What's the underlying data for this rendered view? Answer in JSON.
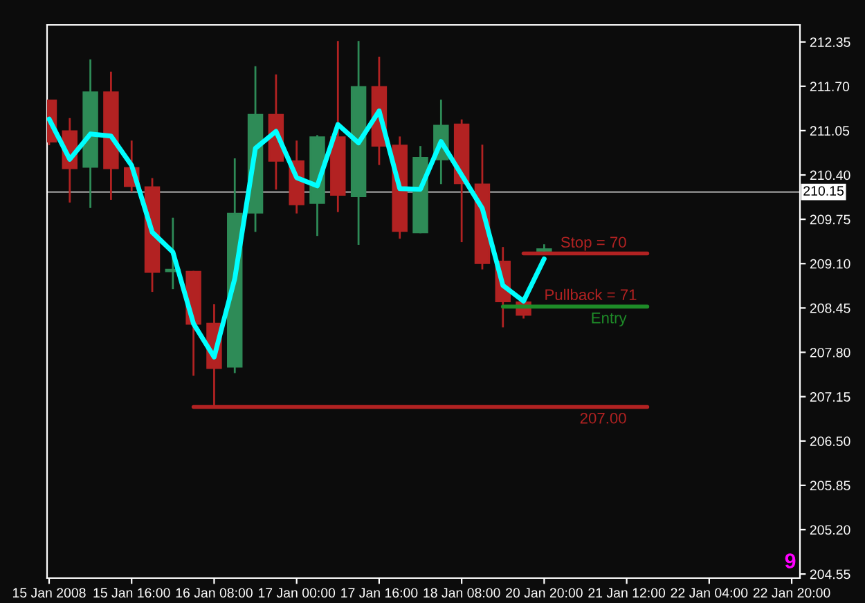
{
  "chart_data": {
    "type": "candlestick",
    "categories": [
      "15 Jan 2008",
      null,
      null,
      null,
      "15 Jan 16:00",
      null,
      null,
      null,
      "16 Jan 08:00",
      null,
      null,
      null,
      "17 Jan 00:00",
      null,
      null,
      null,
      "17 Jan 16:00",
      null,
      null,
      null,
      "18 Jan 08:00",
      null,
      null,
      null,
      "20 Jan 20:00",
      null,
      null,
      null,
      "21 Jan 12:00",
      null,
      null,
      null,
      "22 Jan 04:00",
      null,
      null,
      null,
      "22 Jan 20:00"
    ],
    "ylim": [
      204.49,
      212.6
    ],
    "yticks": [
      {
        "value": 212.35,
        "label": "212.35"
      },
      {
        "value": 211.7,
        "label": "211.70"
      },
      {
        "value": 211.05,
        "label": "211.05"
      },
      {
        "value": 210.4,
        "label": "210.40"
      },
      {
        "value": 209.75,
        "label": "209.75"
      },
      {
        "value": 209.1,
        "label": "209.10"
      },
      {
        "value": 208.45,
        "label": "208.45"
      },
      {
        "value": 207.8,
        "label": "207.80"
      },
      {
        "value": 207.15,
        "label": "207.15"
      },
      {
        "value": 206.5,
        "label": "206.50"
      },
      {
        "value": 205.85,
        "label": "205.85"
      },
      {
        "value": 205.2,
        "label": "205.20"
      },
      {
        "value": 204.55,
        "label": "204.55"
      }
    ],
    "ohlc": [
      [
        211.49,
        211.49,
        210.85,
        210.89
      ],
      [
        211.04,
        211.22,
        210.01,
        210.5
      ],
      [
        210.52,
        212.08,
        209.93,
        211.61
      ],
      [
        211.61,
        211.9,
        210.05,
        210.5
      ],
      [
        210.5,
        210.89,
        210.17,
        210.24
      ],
      [
        210.22,
        210.34,
        208.7,
        208.98
      ],
      [
        208.99,
        209.76,
        208.74,
        209.0
      ],
      [
        208.98,
        208.98,
        207.47,
        208.22
      ],
      [
        208.22,
        208.49,
        207.0,
        207.57
      ],
      [
        207.59,
        210.63,
        207.51,
        209.83
      ],
      [
        209.85,
        211.98,
        209.58,
        211.28
      ],
      [
        211.28,
        211.86,
        210.2,
        210.61
      ],
      [
        210.6,
        210.89,
        209.85,
        209.97
      ],
      [
        209.99,
        210.97,
        209.52,
        210.95
      ],
      [
        210.95,
        212.35,
        209.87,
        210.11
      ],
      [
        210.09,
        212.35,
        209.39,
        211.69
      ],
      [
        211.69,
        212.12,
        210.56,
        210.83
      ],
      [
        210.83,
        210.95,
        209.48,
        209.58
      ],
      [
        209.56,
        210.81,
        209.56,
        210.65
      ],
      [
        210.63,
        211.49,
        210.28,
        211.12
      ],
      [
        211.14,
        211.2,
        209.43,
        210.28
      ],
      [
        210.26,
        210.83,
        209.03,
        209.11
      ],
      [
        209.13,
        209.33,
        208.18,
        208.55
      ],
      [
        208.53,
        208.53,
        208.31,
        208.35
      ],
      [
        209.29,
        209.37,
        209.25,
        209.31
      ],
      null,
      null,
      null,
      null,
      null,
      null,
      null,
      null,
      null,
      null,
      null,
      null
    ],
    "colors": [
      "#b22222",
      "#b22222",
      "#2e8b57",
      "#b22222",
      "#b22222",
      "#b22222",
      "#2e8b57",
      "#b22222",
      "#b22222",
      "#2e8b57",
      "#2e8b57",
      "#b22222",
      "#b22222",
      "#2e8b57",
      "#b22222",
      "#2e8b57",
      "#b22222",
      "#b22222",
      "#2e8b57",
      "#2e8b57",
      "#b22222",
      "#b22222",
      "#b22222",
      "#b22222",
      "#2e8b57",
      null,
      null,
      null,
      null,
      null,
      null,
      null,
      null,
      null,
      null,
      null,
      null
    ],
    "series": [
      {
        "type": "line",
        "color": "#00ffff",
        "values": [
          211.22,
          210.63,
          211.0,
          210.97,
          210.54,
          209.56,
          209.27,
          208.22,
          207.73,
          208.88,
          210.79,
          211.04,
          210.36,
          210.24,
          211.14,
          210.87,
          211.34,
          210.2,
          210.19,
          210.89,
          210.4,
          209.91,
          208.78,
          208.55,
          209.17,
          null,
          null,
          null,
          null,
          null,
          null,
          null,
          null,
          null,
          null,
          null,
          null
        ]
      },
      {
        "type": "line",
        "name": "Stop = 70",
        "color": "#b22222",
        "values": [
          null,
          null,
          null,
          null,
          null,
          null,
          null,
          null,
          null,
          null,
          null,
          null,
          null,
          null,
          null,
          null,
          null,
          null,
          null,
          null,
          null,
          null,
          null,
          209.25,
          209.25,
          209.25,
          209.25,
          209.25,
          209.25,
          209.25,
          null,
          null,
          null,
          null,
          null,
          null,
          null
        ]
      },
      {
        "type": "line",
        "name": "Entry",
        "color": "#1e8c28",
        "values": [
          null,
          null,
          null,
          null,
          null,
          null,
          null,
          null,
          null,
          null,
          null,
          null,
          null,
          null,
          null,
          null,
          null,
          null,
          null,
          null,
          null,
          null,
          208.47,
          208.47,
          208.47,
          208.47,
          208.47,
          208.47,
          208.47,
          208.47,
          null,
          null,
          null,
          null,
          null,
          null,
          null
        ]
      },
      {
        "type": "line",
        "name": "207.00",
        "color": "#b22222",
        "values": [
          null,
          null,
          null,
          null,
          null,
          null,
          null,
          207.0,
          207.0,
          207.0,
          207.0,
          207.0,
          207.0,
          207.0,
          207.0,
          207.0,
          207.0,
          207.0,
          207.0,
          207.0,
          207.0,
          207.0,
          207.0,
          207.0,
          207.0,
          207.0,
          207.0,
          207.0,
          207.0,
          207.0,
          null,
          null,
          null,
          null,
          null,
          null,
          null
        ]
      }
    ],
    "ref_lines": [
      {
        "axis": "y",
        "value": 210.15,
        "label": "210.15",
        "color": "#808080"
      }
    ],
    "annotations": [
      "Pullback = 71",
      "9"
    ],
    "legend": false,
    "grid": false
  }
}
